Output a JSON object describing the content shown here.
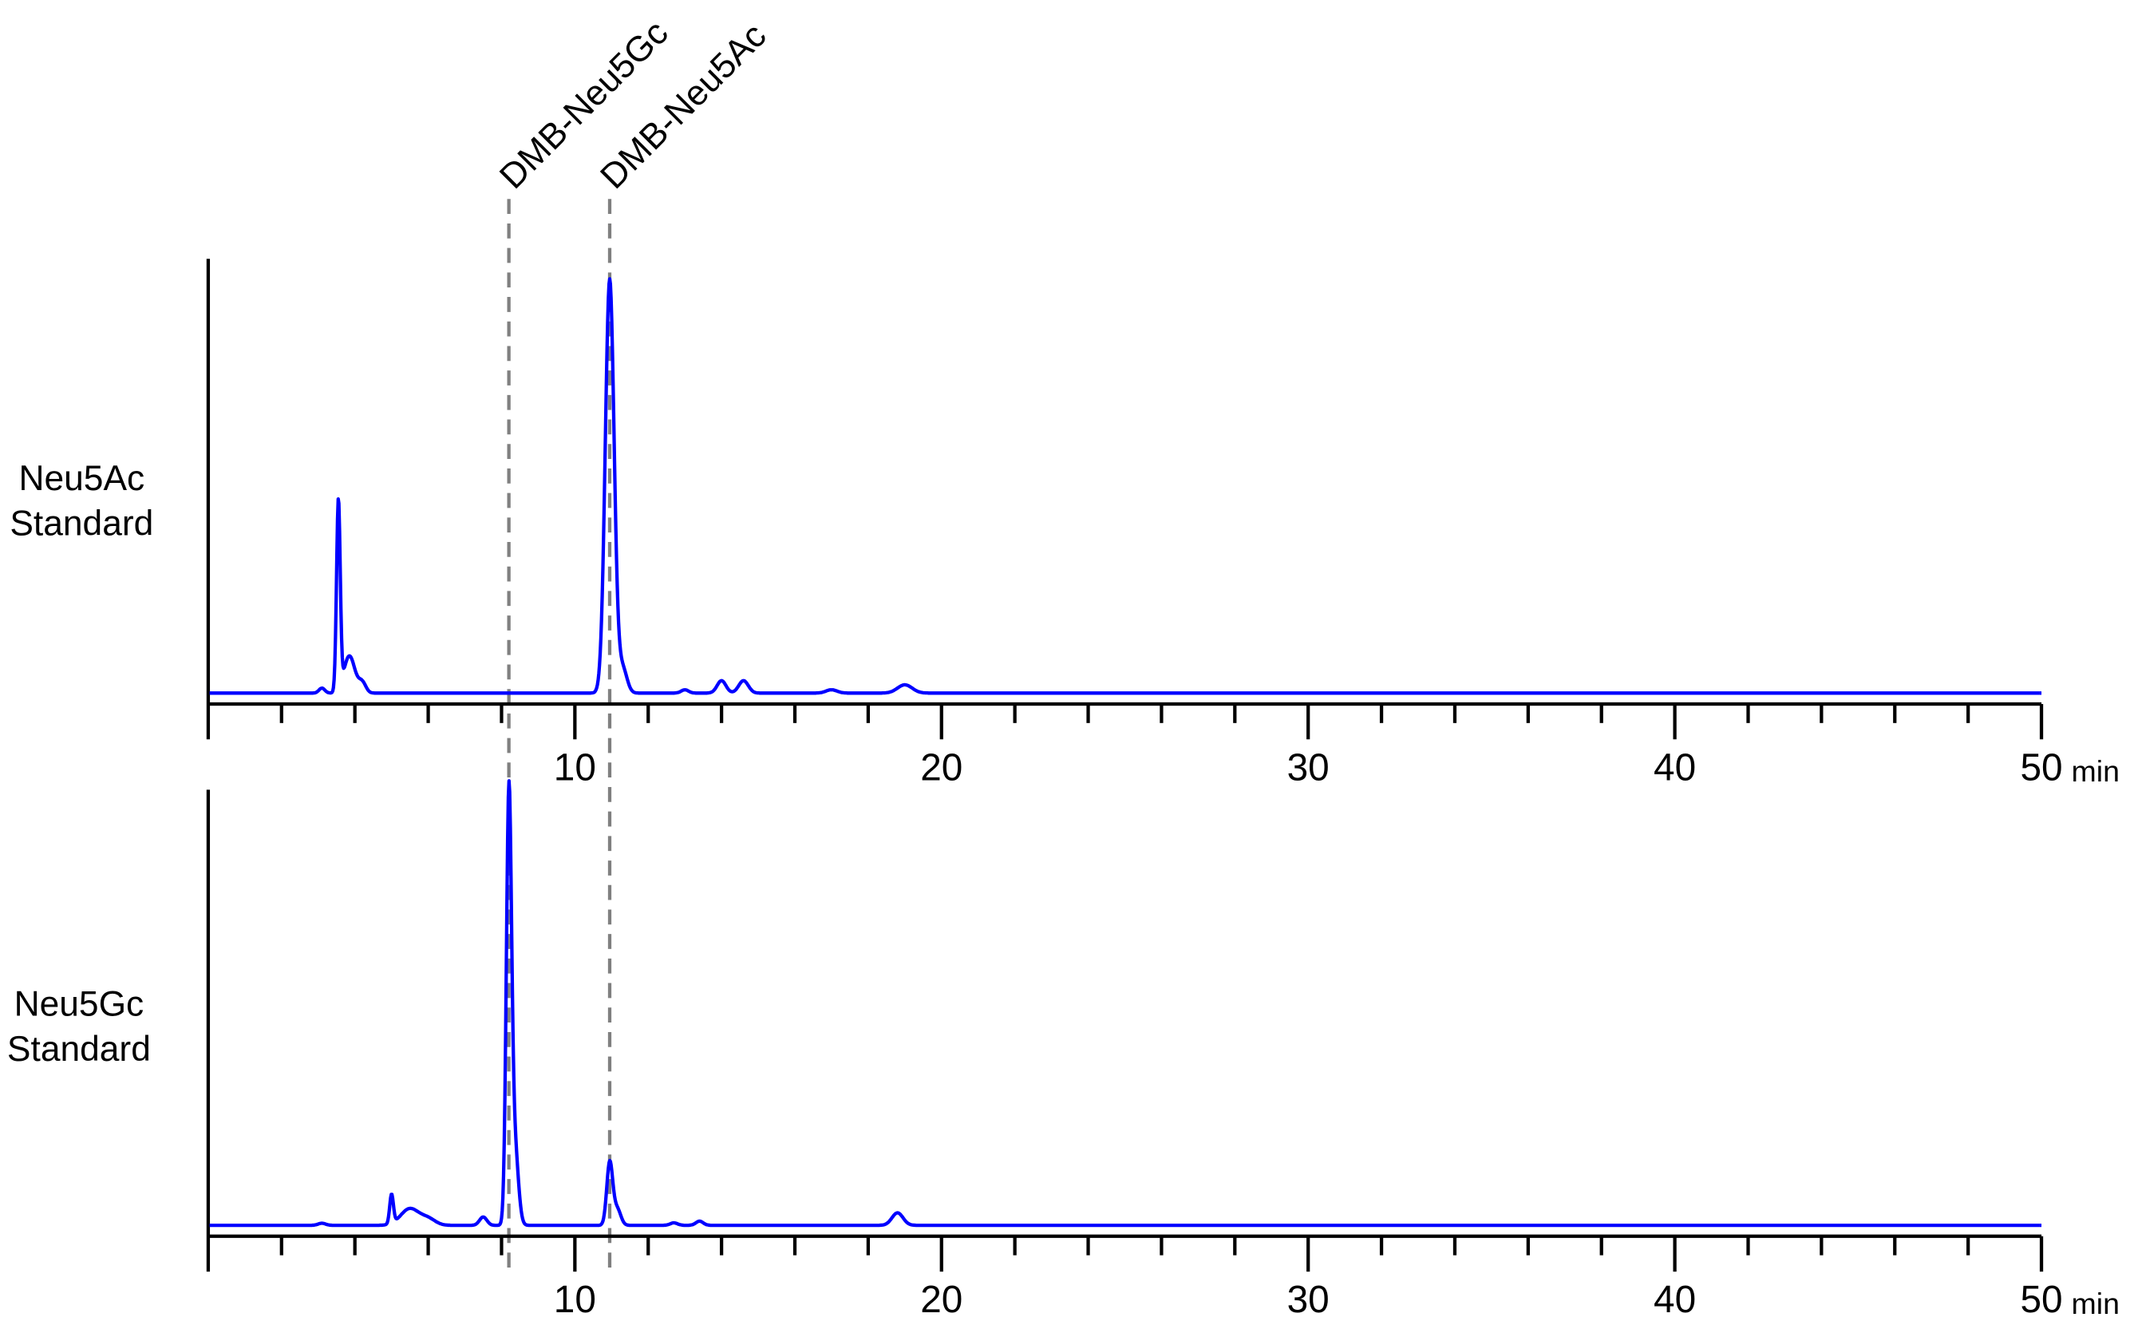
{
  "chart_data": [
    {
      "type": "line",
      "label_lines": [
        "Neu5Ac",
        "Standard"
      ],
      "x_unit": "min",
      "xlim": [
        0,
        50
      ],
      "x_major_ticks": [
        10,
        20,
        30,
        40,
        50
      ],
      "x_tick_labels": [
        "10",
        "20",
        "30",
        "40",
        "50"
      ],
      "x_minor_step": 2,
      "y_axis_ticks": false,
      "grid": false,
      "series_color": "#0000ff",
      "peaks": [
        {
          "time": 3.1,
          "rel_height": 1.2,
          "width": 0.08
        },
        {
          "time": 3.55,
          "rel_height": 46,
          "width": 0.05
        },
        {
          "time": 3.85,
          "rel_height": 9,
          "width": 0.15
        },
        {
          "time": 4.2,
          "rel_height": 2.5,
          "width": 0.1
        },
        {
          "time": 10.95,
          "rel_height": 100,
          "width": 0.12
        },
        {
          "time": 11.3,
          "rel_height": 6,
          "width": 0.12
        },
        {
          "time": 13.0,
          "rel_height": 0.8,
          "width": 0.1
        },
        {
          "time": 14.0,
          "rel_height": 3,
          "width": 0.12
        },
        {
          "time": 14.6,
          "rel_height": 3,
          "width": 0.13
        },
        {
          "time": 17.0,
          "rel_height": 0.8,
          "width": 0.15
        },
        {
          "time": 19.0,
          "rel_height": 2,
          "width": 0.2
        }
      ]
    },
    {
      "type": "line",
      "label_lines": [
        "Neu5Gc",
        "Standard"
      ],
      "x_unit": "min",
      "xlim": [
        0,
        50
      ],
      "x_major_ticks": [
        10,
        20,
        30,
        40,
        50
      ],
      "x_tick_labels": [
        "10",
        "20",
        "30",
        "40",
        "50"
      ],
      "x_minor_step": 2,
      "y_axis_ticks": false,
      "grid": false,
      "series_color": "#0000ff",
      "peaks": [
        {
          "time": 3.1,
          "rel_height": 0.5,
          "width": 0.1
        },
        {
          "time": 5.0,
          "rel_height": 7,
          "width": 0.05
        },
        {
          "time": 5.5,
          "rel_height": 4,
          "width": 0.25
        },
        {
          "time": 6.0,
          "rel_height": 1.5,
          "width": 0.2
        },
        {
          "time": 7.5,
          "rel_height": 2,
          "width": 0.1
        },
        {
          "time": 8.2,
          "rel_height": 100,
          "width": 0.07
        },
        {
          "time": 8.35,
          "rel_height": 20,
          "width": 0.1
        },
        {
          "time": 10.95,
          "rel_height": 15,
          "width": 0.08
        },
        {
          "time": 11.15,
          "rel_height": 4,
          "width": 0.1
        },
        {
          "time": 12.7,
          "rel_height": 0.6,
          "width": 0.1
        },
        {
          "time": 13.4,
          "rel_height": 1,
          "width": 0.1
        },
        {
          "time": 18.8,
          "rel_height": 3,
          "width": 0.15
        }
      ]
    }
  ],
  "markers": [
    {
      "label": "DMB-Neu5Gc",
      "time": 8.2,
      "color": "#808080"
    },
    {
      "label": "DMB-Neu5Ac",
      "time": 10.95,
      "color": "#808080"
    }
  ]
}
